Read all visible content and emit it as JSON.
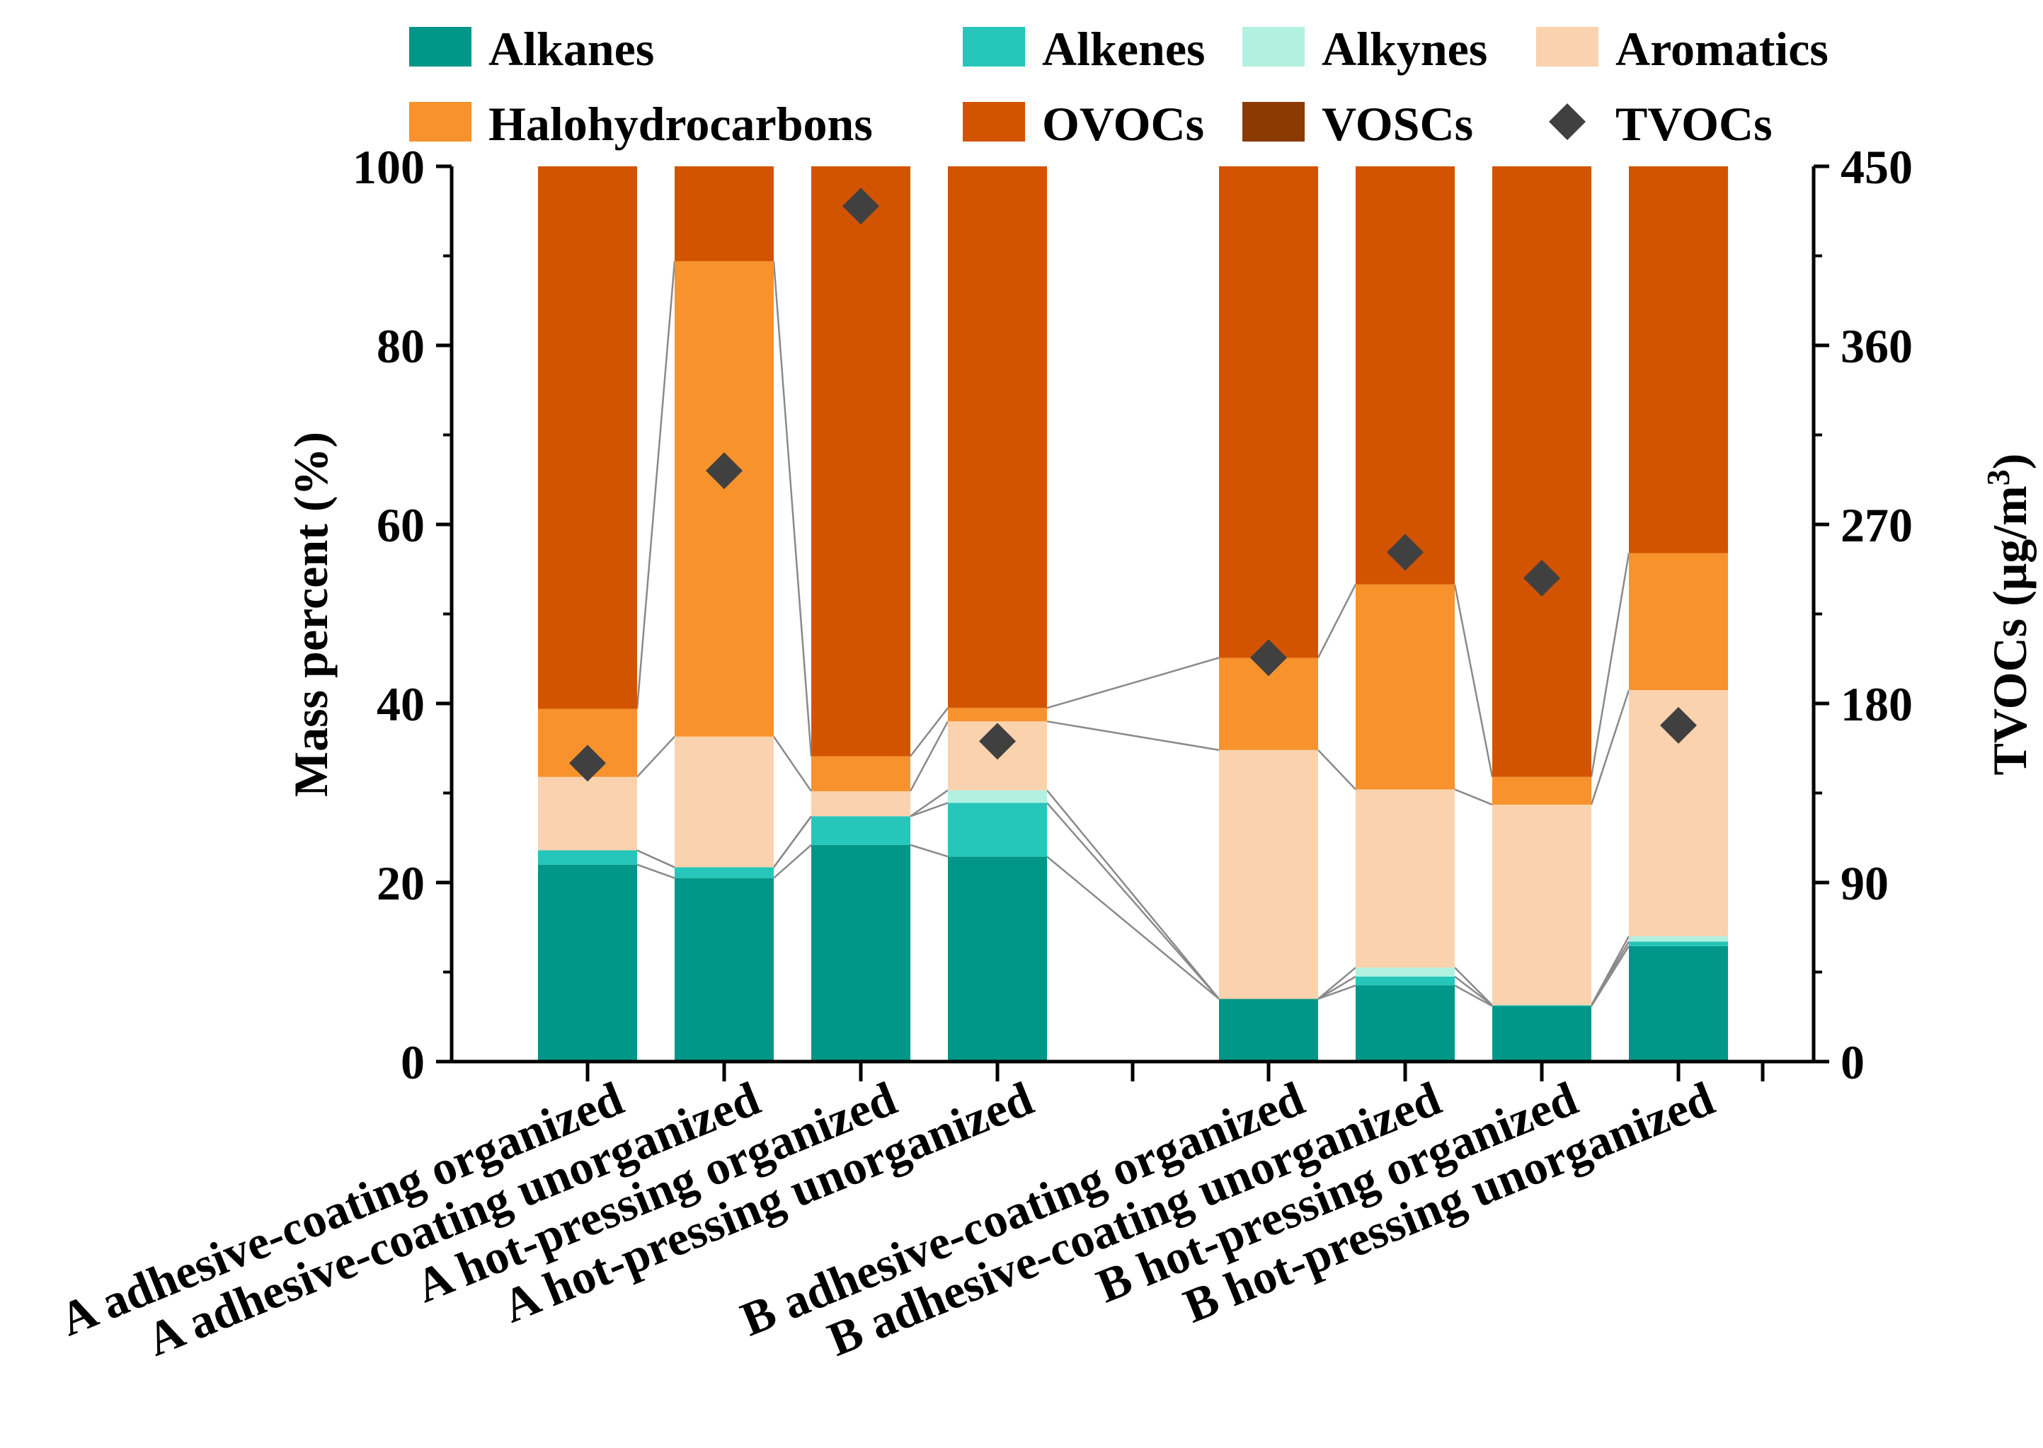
{
  "chart_data": {
    "type": "bar",
    "stacked": true,
    "categories": [
      "A adhesive-coating organized",
      "A adhesive-coating unorganized",
      "A hot-pressing organized",
      "A hot-pressing unorganized",
      "B adhesive-coating organized",
      "B adhesive-coating unorganized",
      "B hot-pressing organized",
      "B hot-pressing unorganized"
    ],
    "series": [
      {
        "name": "Alkanes",
        "color": "#009688",
        "values": [
          22.0,
          20.5,
          24.2,
          22.9,
          7.0,
          8.5,
          6.2,
          12.9
        ]
      },
      {
        "name": "Alkenes",
        "color": "#26C6BA",
        "values": [
          1.6,
          1.2,
          3.2,
          6.0,
          0.0,
          1.0,
          0.1,
          0.5
        ]
      },
      {
        "name": "Alkynes",
        "color": "#B2F0E0",
        "values": [
          0.0,
          0.0,
          0.0,
          1.4,
          0.0,
          1.0,
          0.0,
          0.6
        ]
      },
      {
        "name": "Aromatics",
        "color": "#FBD2AE",
        "values": [
          8.2,
          14.6,
          2.8,
          7.7,
          27.8,
          19.9,
          22.4,
          27.5
        ]
      },
      {
        "name": "Halohydrocarbons",
        "color": "#F7922C",
        "values": [
          7.6,
          53.1,
          3.9,
          1.5,
          10.3,
          22.9,
          3.1,
          15.3
        ]
      },
      {
        "name": "OVOCs",
        "color": "#D35400",
        "values": [
          60.6,
          10.6,
          65.9,
          60.5,
          54.9,
          46.7,
          68.2,
          43.2
        ]
      },
      {
        "name": "VOSCs",
        "color": "#8B3A00",
        "values": [
          0,
          0,
          0,
          0,
          0,
          0,
          0,
          0
        ]
      }
    ],
    "secondary_series": {
      "name": "TVOCs",
      "marker": "diamond",
      "color": "#404040",
      "values": [
        150,
        297,
        430,
        161,
        203,
        256,
        243,
        169
      ]
    },
    "ylabel": "Mass percent (%)",
    "y2label": "TVOCs (μg/m³)",
    "y2label_main": "TVOCs (μg/m",
    "y2label_sup": "3",
    "y2label_end": ")",
    "ylim": [
      0,
      100
    ],
    "y2lim": [
      0,
      450
    ],
    "yticks": [
      "0",
      "20",
      "40",
      "60",
      "80",
      "100"
    ],
    "y2ticks": [
      "0",
      "90",
      "180",
      "270",
      "360",
      "450"
    ],
    "legend": {
      "row1": [
        "Alkanes",
        "Alkenes",
        "Alkynes",
        "Aromatics"
      ],
      "row2": [
        "Halohydrocarbons",
        "OVOCs",
        "VOSCs",
        "TVOCs"
      ]
    }
  }
}
